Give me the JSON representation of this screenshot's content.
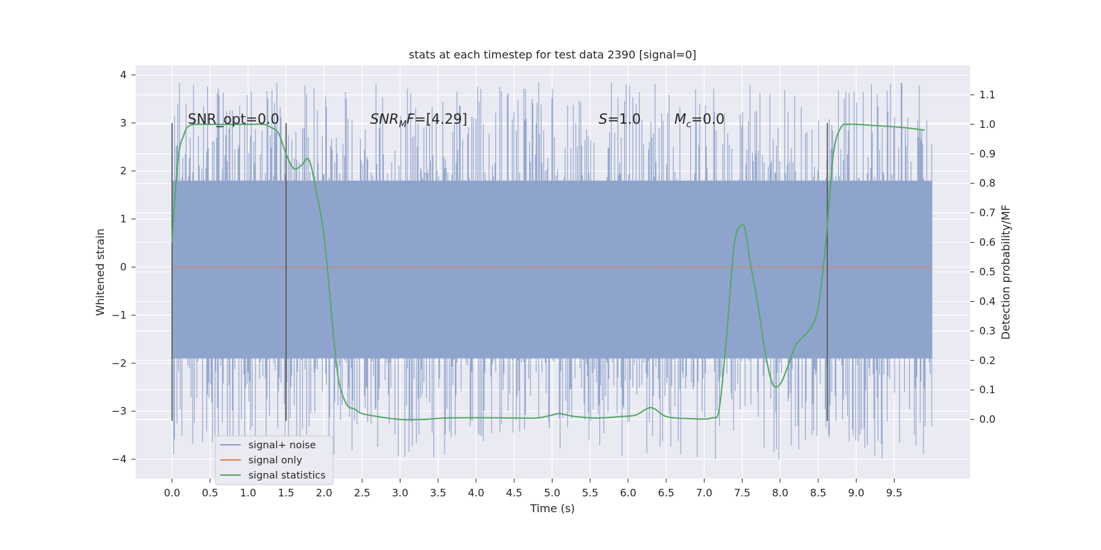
{
  "chart_data": {
    "type": "line",
    "title": "stats at each timestep for test data 2390 [signal=0]",
    "xlabel": "Time (s)",
    "ylabel": "Whitened strain",
    "ylabel_right": "Detection probability/MF",
    "xlim": [
      -0.48,
      10.5
    ],
    "ylim": [
      -4.4,
      4.2
    ],
    "ylim_right": [
      -0.2,
      1.2
    ],
    "x_ticks": [
      "0.0",
      "0.5",
      "1.0",
      "1.5",
      "2.0",
      "2.5",
      "3.0",
      "3.5",
      "4.0",
      "4.5",
      "5.0",
      "5.5",
      "6.0",
      "6.5",
      "7.0",
      "7.5",
      "8.0",
      "8.5",
      "9.0",
      "9.5"
    ],
    "y_ticks": [
      "4",
      "3",
      "2",
      "1",
      "0",
      "−1",
      "−2",
      "−3",
      "−4"
    ],
    "y_ticks_right": [
      "1.1",
      "1.0",
      "0.9",
      "0.8",
      "0.7",
      "0.6",
      "0.5",
      "0.4",
      "0.3",
      "0.2",
      "0.1",
      "0.0"
    ],
    "grid": true,
    "legend_position": "lower-left",
    "legend": [
      "signal+ noise",
      "signal only",
      "signal statistics"
    ],
    "colors": {
      "noise": "#8fa4cc",
      "signal_only": "#dd8452",
      "statistics": "#55a868",
      "markers": "#555555",
      "background": "#eaeaf2",
      "grid": "#ffffff"
    },
    "annotations": {
      "snr_opt": "SNR_opt=0.0",
      "snr_mf": "[4.29]",
      "s_value": "=1.0",
      "mc_value": "=0.0"
    },
    "noise_series": {
      "x_range": [
        0.0,
        10.0
      ],
      "band_ymin": -1.9,
      "band_ymax": 1.8,
      "peak_max": 3.85,
      "peak_min": -4.05
    },
    "signal_only": {
      "x": [
        0.0,
        10.0
      ],
      "y": [
        0.0,
        0.0
      ]
    },
    "marker_lines": [
      {
        "x": 0.0,
        "ymin": -3.2,
        "ymax": 3.0
      },
      {
        "x": 1.5,
        "ymin": -3.2,
        "ymax": 3.0
      },
      {
        "x": 8.62,
        "ymin": -3.2,
        "ymax": 3.0
      }
    ],
    "series": [
      {
        "name": "signal statistics",
        "x": [
          0.0,
          0.05,
          0.1,
          0.15,
          0.2,
          0.3,
          0.5,
          0.8,
          1.0,
          1.2,
          1.3,
          1.4,
          1.5,
          1.6,
          1.7,
          1.8,
          1.9,
          2.0,
          2.1,
          2.15,
          2.2,
          2.3,
          2.4,
          2.5,
          2.7,
          3.0,
          3.3,
          3.6,
          4.0,
          4.5,
          4.8,
          5.0,
          5.1,
          5.3,
          5.6,
          5.9,
          6.1,
          6.3,
          6.5,
          6.8,
          7.1,
          7.2,
          7.3,
          7.4,
          7.5,
          7.55,
          7.6,
          7.7,
          7.8,
          7.9,
          8.0,
          8.1,
          8.2,
          8.3,
          8.4,
          8.5,
          8.6,
          8.7,
          8.8,
          8.9,
          9.0,
          9.3,
          9.6,
          9.9
        ],
        "y": [
          0.6,
          0.8,
          0.92,
          0.96,
          0.99,
          1.0,
          1.0,
          1.0,
          1.0,
          1.0,
          0.99,
          0.97,
          0.9,
          0.85,
          0.86,
          0.88,
          0.77,
          0.62,
          0.35,
          0.22,
          0.12,
          0.05,
          0.035,
          0.02,
          0.01,
          0.0,
          0.0,
          0.005,
          0.006,
          0.005,
          0.005,
          0.015,
          0.02,
          0.01,
          0.005,
          0.01,
          0.015,
          0.04,
          0.01,
          0.003,
          0.005,
          0.04,
          0.3,
          0.6,
          0.66,
          0.63,
          0.54,
          0.4,
          0.23,
          0.12,
          0.12,
          0.18,
          0.25,
          0.28,
          0.31,
          0.38,
          0.6,
          0.9,
          0.99,
          1.0,
          1.0,
          0.995,
          0.99,
          0.98
        ]
      }
    ]
  }
}
